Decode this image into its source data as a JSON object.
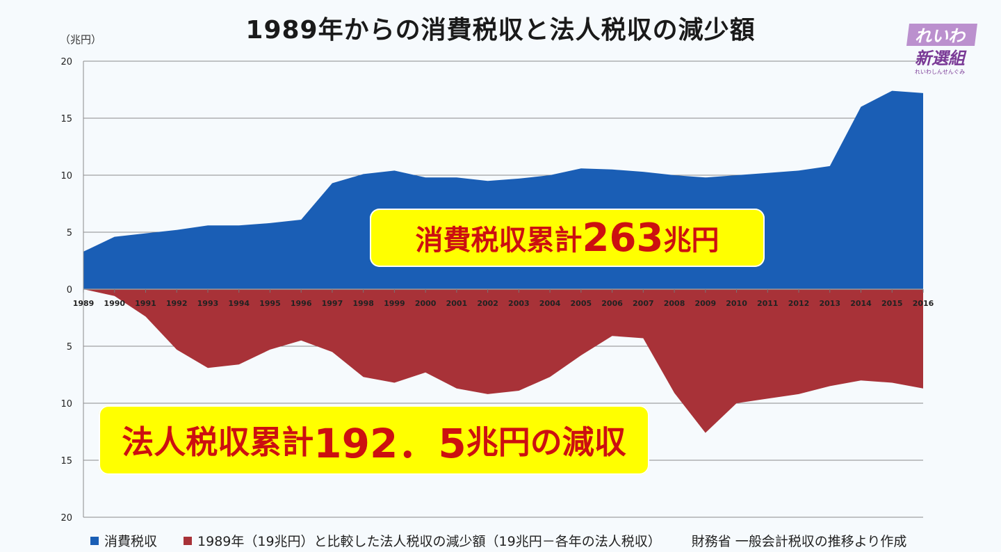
{
  "title": "1989年からの消費税収と法人税収の減少額",
  "unit_label": "（兆円）",
  "callouts": {
    "consumption_prefix": "消費税収累計",
    "consumption_value": "263",
    "consumption_suffix": "兆円",
    "corporate_prefix": "法人税収累計",
    "corporate_value": "192．5",
    "corporate_suffix": "兆円の減収"
  },
  "legend": {
    "consumption": "消費税収",
    "corporate": "1989年（19兆円）と比較した法人税収の減少額（19兆円－各年の法人税収）",
    "source": "財務省 一般会計税収の推移より作成"
  },
  "logo": {
    "line1": "れいわ",
    "line2": "新選組",
    "line3": "れいわしんせんぐみ"
  },
  "colors": {
    "consumption": "#1a5eb5",
    "corporate": "#a83238",
    "callout_bg": "#ffff00",
    "callout_text": "#cc1010",
    "logo": "#9b59b6"
  },
  "chart_data": {
    "type": "area",
    "x": [
      "1989",
      "1990",
      "1991",
      "1992",
      "1993",
      "1994",
      "1995",
      "1996",
      "1997",
      "1998",
      "1999",
      "2000",
      "2001",
      "2002",
      "2003",
      "2004",
      "2005",
      "2006",
      "2007",
      "2008",
      "2009",
      "2010",
      "2011",
      "2012",
      "2013",
      "2014",
      "2015",
      "2016"
    ],
    "series": [
      {
        "name": "消費税収",
        "direction": "up",
        "values": [
          3.3,
          4.6,
          4.9,
          5.2,
          5.6,
          5.6,
          5.8,
          6.1,
          9.3,
          10.1,
          10.4,
          9.8,
          9.8,
          9.5,
          9.7,
          10.0,
          10.6,
          10.5,
          10.3,
          10.0,
          9.8,
          10.0,
          10.2,
          10.4,
          10.8,
          16.0,
          17.4,
          17.2
        ]
      },
      {
        "name": "1989年（19兆円）と比較した法人税収の減少額（19兆円－各年の法人税収）",
        "direction": "down",
        "values": [
          0,
          0.6,
          2.4,
          5.3,
          6.9,
          6.6,
          5.3,
          4.5,
          5.5,
          7.7,
          8.2,
          7.3,
          8.7,
          9.2,
          8.9,
          7.7,
          5.8,
          4.1,
          4.3,
          9.1,
          12.6,
          10.0,
          9.6,
          9.2,
          8.5,
          8.0,
          8.2,
          8.7
        ]
      }
    ],
    "y_ticks_up": [
      0,
      5,
      10,
      15,
      20
    ],
    "y_ticks_down": [
      5,
      10,
      15,
      20
    ],
    "ylim": [
      -20,
      20
    ],
    "grid": true,
    "legend_position": "bottom"
  }
}
